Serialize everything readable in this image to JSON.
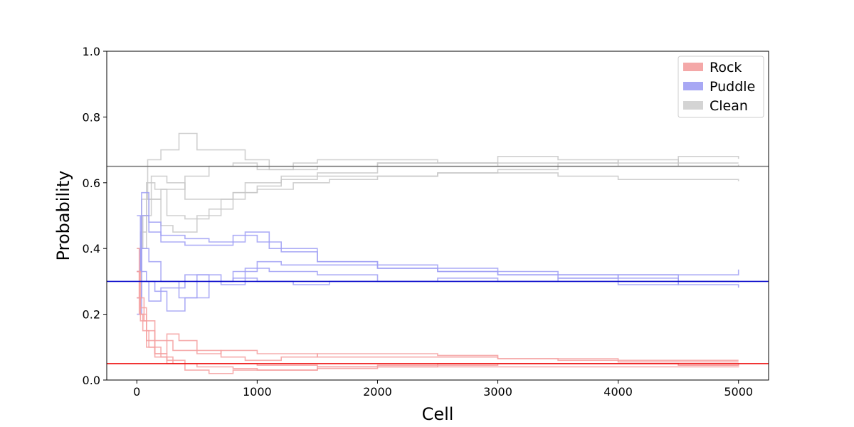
{
  "chart_data": {
    "type": "line",
    "xlabel": "Cell",
    "ylabel": "Probability",
    "xlim": [
      -250,
      5250
    ],
    "ylim": [
      0.0,
      1.0
    ],
    "xticks": [
      0,
      1000,
      2000,
      3000,
      4000,
      5000
    ],
    "yticks": [
      0.0,
      0.2,
      0.4,
      0.6,
      0.8,
      1.0
    ],
    "grid": false,
    "legend": {
      "position": "top-right",
      "entries": [
        {
          "label": "Rock",
          "color": "#f4a8a8"
        },
        {
          "label": "Puddle",
          "color": "#a8a8f4"
        },
        {
          "label": "Clean",
          "color": "#d4d4d4"
        }
      ]
    },
    "reference_lines": [
      {
        "name": "Rock",
        "y": 0.05,
        "color": "#ee1111"
      },
      {
        "name": "Puddle",
        "y": 0.3,
        "color": "#1111cc"
      },
      {
        "name": "Clean",
        "y": 0.65,
        "color": "#777777"
      }
    ],
    "series": [
      {
        "group": "Clean",
        "color": "#c8c8c8",
        "points": [
          [
            0,
            0.33
          ],
          [
            30,
            0.45
          ],
          [
            80,
            0.6
          ],
          [
            150,
            0.58
          ],
          [
            250,
            0.5
          ],
          [
            400,
            0.49
          ],
          [
            600,
            0.52
          ],
          [
            800,
            0.57
          ],
          [
            1000,
            0.59
          ],
          [
            1200,
            0.61
          ],
          [
            1500,
            0.63
          ],
          [
            2000,
            0.66
          ],
          [
            2500,
            0.66
          ],
          [
            3000,
            0.68
          ],
          [
            3500,
            0.67
          ],
          [
            4000,
            0.66
          ],
          [
            4500,
            0.68
          ],
          [
            5000,
            0.673
          ]
        ]
      },
      {
        "group": "Clean",
        "color": "#c8c8c8",
        "points": [
          [
            0,
            0.33
          ],
          [
            40,
            0.55
          ],
          [
            90,
            0.67
          ],
          [
            200,
            0.7
          ],
          [
            350,
            0.75
          ],
          [
            500,
            0.7
          ],
          [
            700,
            0.7
          ],
          [
            900,
            0.67
          ],
          [
            1100,
            0.64
          ],
          [
            1500,
            0.65
          ],
          [
            2000,
            0.66
          ],
          [
            2500,
            0.66
          ],
          [
            3000,
            0.65
          ],
          [
            3500,
            0.66
          ],
          [
            4000,
            0.65
          ],
          [
            4500,
            0.66
          ],
          [
            5000,
            0.66
          ]
        ]
      },
      {
        "group": "Clean",
        "color": "#c8c8c8",
        "points": [
          [
            0,
            0.25
          ],
          [
            40,
            0.5
          ],
          [
            100,
            0.55
          ],
          [
            200,
            0.47
          ],
          [
            300,
            0.45
          ],
          [
            500,
            0.5
          ],
          [
            700,
            0.55
          ],
          [
            900,
            0.6
          ],
          [
            1200,
            0.62
          ],
          [
            1500,
            0.62
          ],
          [
            2000,
            0.62
          ],
          [
            2500,
            0.63
          ],
          [
            3000,
            0.63
          ],
          [
            3500,
            0.62
          ],
          [
            4000,
            0.61
          ],
          [
            4500,
            0.61
          ],
          [
            5000,
            0.605
          ]
        ]
      },
      {
        "group": "Clean",
        "color": "#c8c8c8",
        "points": [
          [
            0,
            0.33
          ],
          [
            30,
            0.4
          ],
          [
            80,
            0.55
          ],
          [
            200,
            0.58
          ],
          [
            400,
            0.62
          ],
          [
            600,
            0.65
          ],
          [
            800,
            0.66
          ],
          [
            1000,
            0.64
          ],
          [
            1300,
            0.66
          ],
          [
            1500,
            0.67
          ],
          [
            2000,
            0.67
          ],
          [
            2500,
            0.66
          ],
          [
            3000,
            0.66
          ],
          [
            3500,
            0.66
          ],
          [
            4000,
            0.67
          ],
          [
            4500,
            0.65
          ],
          [
            5000,
            0.652
          ]
        ]
      },
      {
        "group": "Clean",
        "color": "#c8c8c8",
        "points": [
          [
            0,
            0.4
          ],
          [
            50,
            0.5
          ],
          [
            120,
            0.62
          ],
          [
            250,
            0.6
          ],
          [
            400,
            0.55
          ],
          [
            600,
            0.55
          ],
          [
            800,
            0.57
          ],
          [
            1000,
            0.58
          ],
          [
            1300,
            0.6
          ],
          [
            1600,
            0.61
          ],
          [
            2000,
            0.62
          ],
          [
            2500,
            0.63
          ],
          [
            3000,
            0.64
          ],
          [
            3500,
            0.65
          ],
          [
            4000,
            0.65
          ],
          [
            4500,
            0.65
          ],
          [
            5000,
            0.655
          ]
        ]
      },
      {
        "group": "Puddle",
        "color": "#9f9ff5",
        "points": [
          [
            0,
            0.5
          ],
          [
            30,
            0.33
          ],
          [
            80,
            0.3
          ],
          [
            150,
            0.27
          ],
          [
            250,
            0.21
          ],
          [
            400,
            0.25
          ],
          [
            600,
            0.3
          ],
          [
            800,
            0.33
          ],
          [
            1000,
            0.36
          ],
          [
            1200,
            0.35
          ],
          [
            1500,
            0.35
          ],
          [
            2000,
            0.34
          ],
          [
            2500,
            0.33
          ],
          [
            3000,
            0.32
          ],
          [
            3500,
            0.32
          ],
          [
            4000,
            0.31
          ],
          [
            4500,
            0.3
          ],
          [
            5000,
            0.3
          ]
        ]
      },
      {
        "group": "Puddle",
        "color": "#9f9ff5",
        "points": [
          [
            0,
            0.33
          ],
          [
            40,
            0.5
          ],
          [
            100,
            0.45
          ],
          [
            200,
            0.42
          ],
          [
            400,
            0.41
          ],
          [
            600,
            0.41
          ],
          [
            800,
            0.42
          ],
          [
            900,
            0.45
          ],
          [
            1100,
            0.4
          ],
          [
            1500,
            0.36
          ],
          [
            2000,
            0.35
          ],
          [
            2500,
            0.33
          ],
          [
            3000,
            0.32
          ],
          [
            3500,
            0.31
          ],
          [
            4000,
            0.3
          ],
          [
            4500,
            0.29
          ],
          [
            5000,
            0.281
          ]
        ]
      },
      {
        "group": "Puddle",
        "color": "#9f9ff5",
        "points": [
          [
            0,
            0.25
          ],
          [
            40,
            0.57
          ],
          [
            100,
            0.48
          ],
          [
            200,
            0.44
          ],
          [
            400,
            0.43
          ],
          [
            600,
            0.42
          ],
          [
            800,
            0.44
          ],
          [
            1000,
            0.42
          ],
          [
            1200,
            0.39
          ],
          [
            1500,
            0.36
          ],
          [
            2000,
            0.34
          ],
          [
            2500,
            0.34
          ],
          [
            3000,
            0.33
          ],
          [
            3500,
            0.32
          ],
          [
            4000,
            0.32
          ],
          [
            4500,
            0.3
          ],
          [
            5000,
            0.3
          ]
        ]
      },
      {
        "group": "Puddle",
        "color": "#9f9ff5",
        "points": [
          [
            0,
            0.2
          ],
          [
            40,
            0.3
          ],
          [
            100,
            0.24
          ],
          [
            200,
            0.28
          ],
          [
            400,
            0.32
          ],
          [
            600,
            0.3
          ],
          [
            800,
            0.31
          ],
          [
            1000,
            0.3
          ],
          [
            1300,
            0.29
          ],
          [
            1600,
            0.3
          ],
          [
            2000,
            0.3
          ],
          [
            2500,
            0.31
          ],
          [
            3000,
            0.3
          ],
          [
            3500,
            0.3
          ],
          [
            4000,
            0.29
          ],
          [
            4500,
            0.3
          ],
          [
            5000,
            0.297
          ]
        ]
      },
      {
        "group": "Puddle",
        "color": "#9f9ff5",
        "points": [
          [
            0,
            0.33
          ],
          [
            30,
            0.4
          ],
          [
            100,
            0.36
          ],
          [
            200,
            0.3
          ],
          [
            350,
            0.25
          ],
          [
            500,
            0.32
          ],
          [
            700,
            0.29
          ],
          [
            900,
            0.34
          ],
          [
            1100,
            0.33
          ],
          [
            1500,
            0.32
          ],
          [
            2000,
            0.3
          ],
          [
            2500,
            0.3
          ],
          [
            3000,
            0.3
          ],
          [
            3500,
            0.31
          ],
          [
            4000,
            0.32
          ],
          [
            4500,
            0.32
          ],
          [
            5000,
            0.336
          ]
        ]
      },
      {
        "group": "Rock",
        "color": "#f49f9f",
        "points": [
          [
            0,
            0.33
          ],
          [
            20,
            0.2
          ],
          [
            50,
            0.15
          ],
          [
            100,
            0.1
          ],
          [
            200,
            0.07
          ],
          [
            300,
            0.05
          ],
          [
            500,
            0.04
          ],
          [
            800,
            0.035
          ],
          [
            1000,
            0.03
          ],
          [
            1500,
            0.035
          ],
          [
            2000,
            0.04
          ],
          [
            2500,
            0.045
          ],
          [
            3000,
            0.05
          ],
          [
            3500,
            0.05
          ],
          [
            4000,
            0.05
          ],
          [
            4500,
            0.045
          ],
          [
            5000,
            0.05
          ]
        ]
      },
      {
        "group": "Rock",
        "color": "#f49f9f",
        "points": [
          [
            0,
            0.4
          ],
          [
            20,
            0.25
          ],
          [
            60,
            0.18
          ],
          [
            150,
            0.12
          ],
          [
            300,
            0.09
          ],
          [
            500,
            0.08
          ],
          [
            700,
            0.09
          ],
          [
            1000,
            0.08
          ],
          [
            1500,
            0.07
          ],
          [
            2000,
            0.07
          ],
          [
            2500,
            0.07
          ],
          [
            3000,
            0.065
          ],
          [
            3500,
            0.065
          ],
          [
            4000,
            0.06
          ],
          [
            4500,
            0.06
          ],
          [
            5000,
            0.06
          ]
        ]
      },
      {
        "group": "Rock",
        "color": "#f49f9f",
        "points": [
          [
            0,
            0.25
          ],
          [
            30,
            0.2
          ],
          [
            80,
            0.12
          ],
          [
            150,
            0.07
          ],
          [
            250,
            0.05
          ],
          [
            400,
            0.03
          ],
          [
            600,
            0.02
          ],
          [
            800,
            0.03
          ],
          [
            1000,
            0.03
          ],
          [
            1500,
            0.04
          ],
          [
            2000,
            0.045
          ],
          [
            2500,
            0.05
          ],
          [
            3000,
            0.05
          ],
          [
            3500,
            0.05
          ],
          [
            4000,
            0.05
          ],
          [
            4500,
            0.045
          ],
          [
            5000,
            0.045
          ]
        ]
      },
      {
        "group": "Rock",
        "color": "#f49f9f",
        "points": [
          [
            0,
            0.25
          ],
          [
            30,
            0.18
          ],
          [
            80,
            0.1
          ],
          [
            150,
            0.08
          ],
          [
            250,
            0.14
          ],
          [
            350,
            0.12
          ],
          [
            500,
            0.09
          ],
          [
            700,
            0.07
          ],
          [
            900,
            0.06
          ],
          [
            1200,
            0.07
          ],
          [
            1500,
            0.08
          ],
          [
            2000,
            0.08
          ],
          [
            2500,
            0.075
          ],
          [
            3000,
            0.065
          ],
          [
            3500,
            0.06
          ],
          [
            4000,
            0.055
          ],
          [
            4500,
            0.055
          ],
          [
            5000,
            0.055
          ]
        ]
      },
      {
        "group": "Rock",
        "color": "#f49f9f",
        "points": [
          [
            0,
            0.33
          ],
          [
            30,
            0.22
          ],
          [
            80,
            0.15
          ],
          [
            150,
            0.08
          ],
          [
            250,
            0.06
          ],
          [
            400,
            0.05
          ],
          [
            600,
            0.05
          ],
          [
            800,
            0.05
          ],
          [
            1000,
            0.045
          ],
          [
            1500,
            0.04
          ],
          [
            2000,
            0.04
          ],
          [
            2500,
            0.04
          ],
          [
            3000,
            0.04
          ],
          [
            3500,
            0.04
          ],
          [
            4000,
            0.04
          ],
          [
            4500,
            0.04
          ],
          [
            5000,
            0.042
          ]
        ]
      }
    ]
  }
}
